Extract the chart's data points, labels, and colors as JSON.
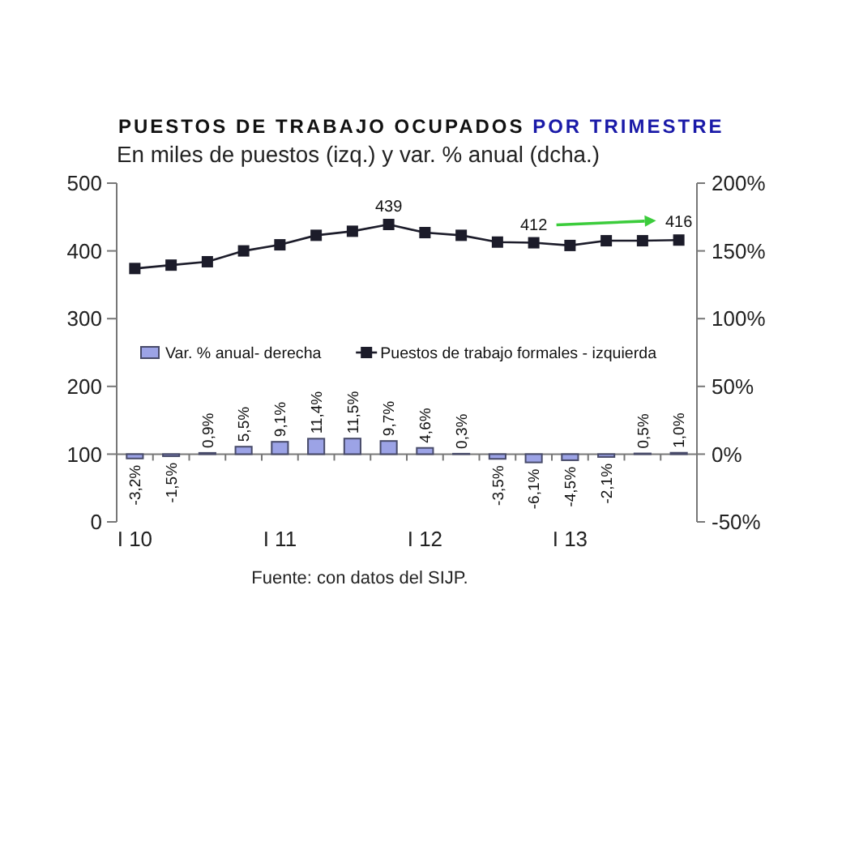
{
  "chart_data": {
    "type": "bar",
    "title": "PUESTOS DE TRABAJO OCUPADOS POR TRIMESTRE",
    "subtitle": "En miles de puestos (izq.) y var. % anual (dcha.)",
    "annotations": [
      "Fuente: con datos del SIJP."
    ],
    "categories": [
      "I 10",
      null,
      null,
      null,
      "I 11",
      null,
      null,
      null,
      "I 12",
      null,
      null,
      null,
      "I 13",
      null,
      null,
      null
    ],
    "series": [
      {
        "name": "Var. % anual- derecha",
        "axis": "y2",
        "color": "#9ca3e6",
        "values": [
          -3.2,
          -1.5,
          0.9,
          5.5,
          9.1,
          11.4,
          11.5,
          9.7,
          4.6,
          0.3,
          -3.5,
          -6.1,
          -4.5,
          -2.1,
          0.5,
          1.0
        ],
        "value_labels": [
          "-3,2%",
          "-1,5%",
          "0,9%",
          "5,5%",
          "9,1%",
          "11,4%",
          "11,5%",
          "9,7%",
          "4,6%",
          "0,3%",
          "-3,5%",
          "-6,1%",
          "-4,5%",
          "-2,1%",
          "0,5%",
          "1,0%"
        ]
      },
      {
        "name": "Puestos de trabajo formales - izquierda",
        "type": "line",
        "color": "#1c1c2a",
        "values": [
          374,
          379,
          384,
          400,
          409,
          423,
          429,
          439,
          427,
          423,
          413,
          412,
          408,
          415,
          415,
          416
        ],
        "value_labels": [
          null,
          null,
          null,
          null,
          null,
          null,
          null,
          "439",
          null,
          null,
          null,
          "412",
          null,
          null,
          null,
          "416"
        ]
      }
    ],
    "ylim": [
      0,
      500
    ],
    "yticks": [
      0,
      100,
      200,
      300,
      400,
      500
    ],
    "y2lim": [
      -50,
      200
    ],
    "y2ticks": [
      {
        "value": -50,
        "label": "-50%"
      },
      {
        "value": 0,
        "label": "0%"
      },
      {
        "value": 50,
        "label": "50%"
      },
      {
        "value": 100,
        "label": "100%"
      },
      {
        "value": 150,
        "label": "150%"
      },
      {
        "value": 200,
        "label": "200%"
      }
    ],
    "legend": "center",
    "marker": "square"
  }
}
